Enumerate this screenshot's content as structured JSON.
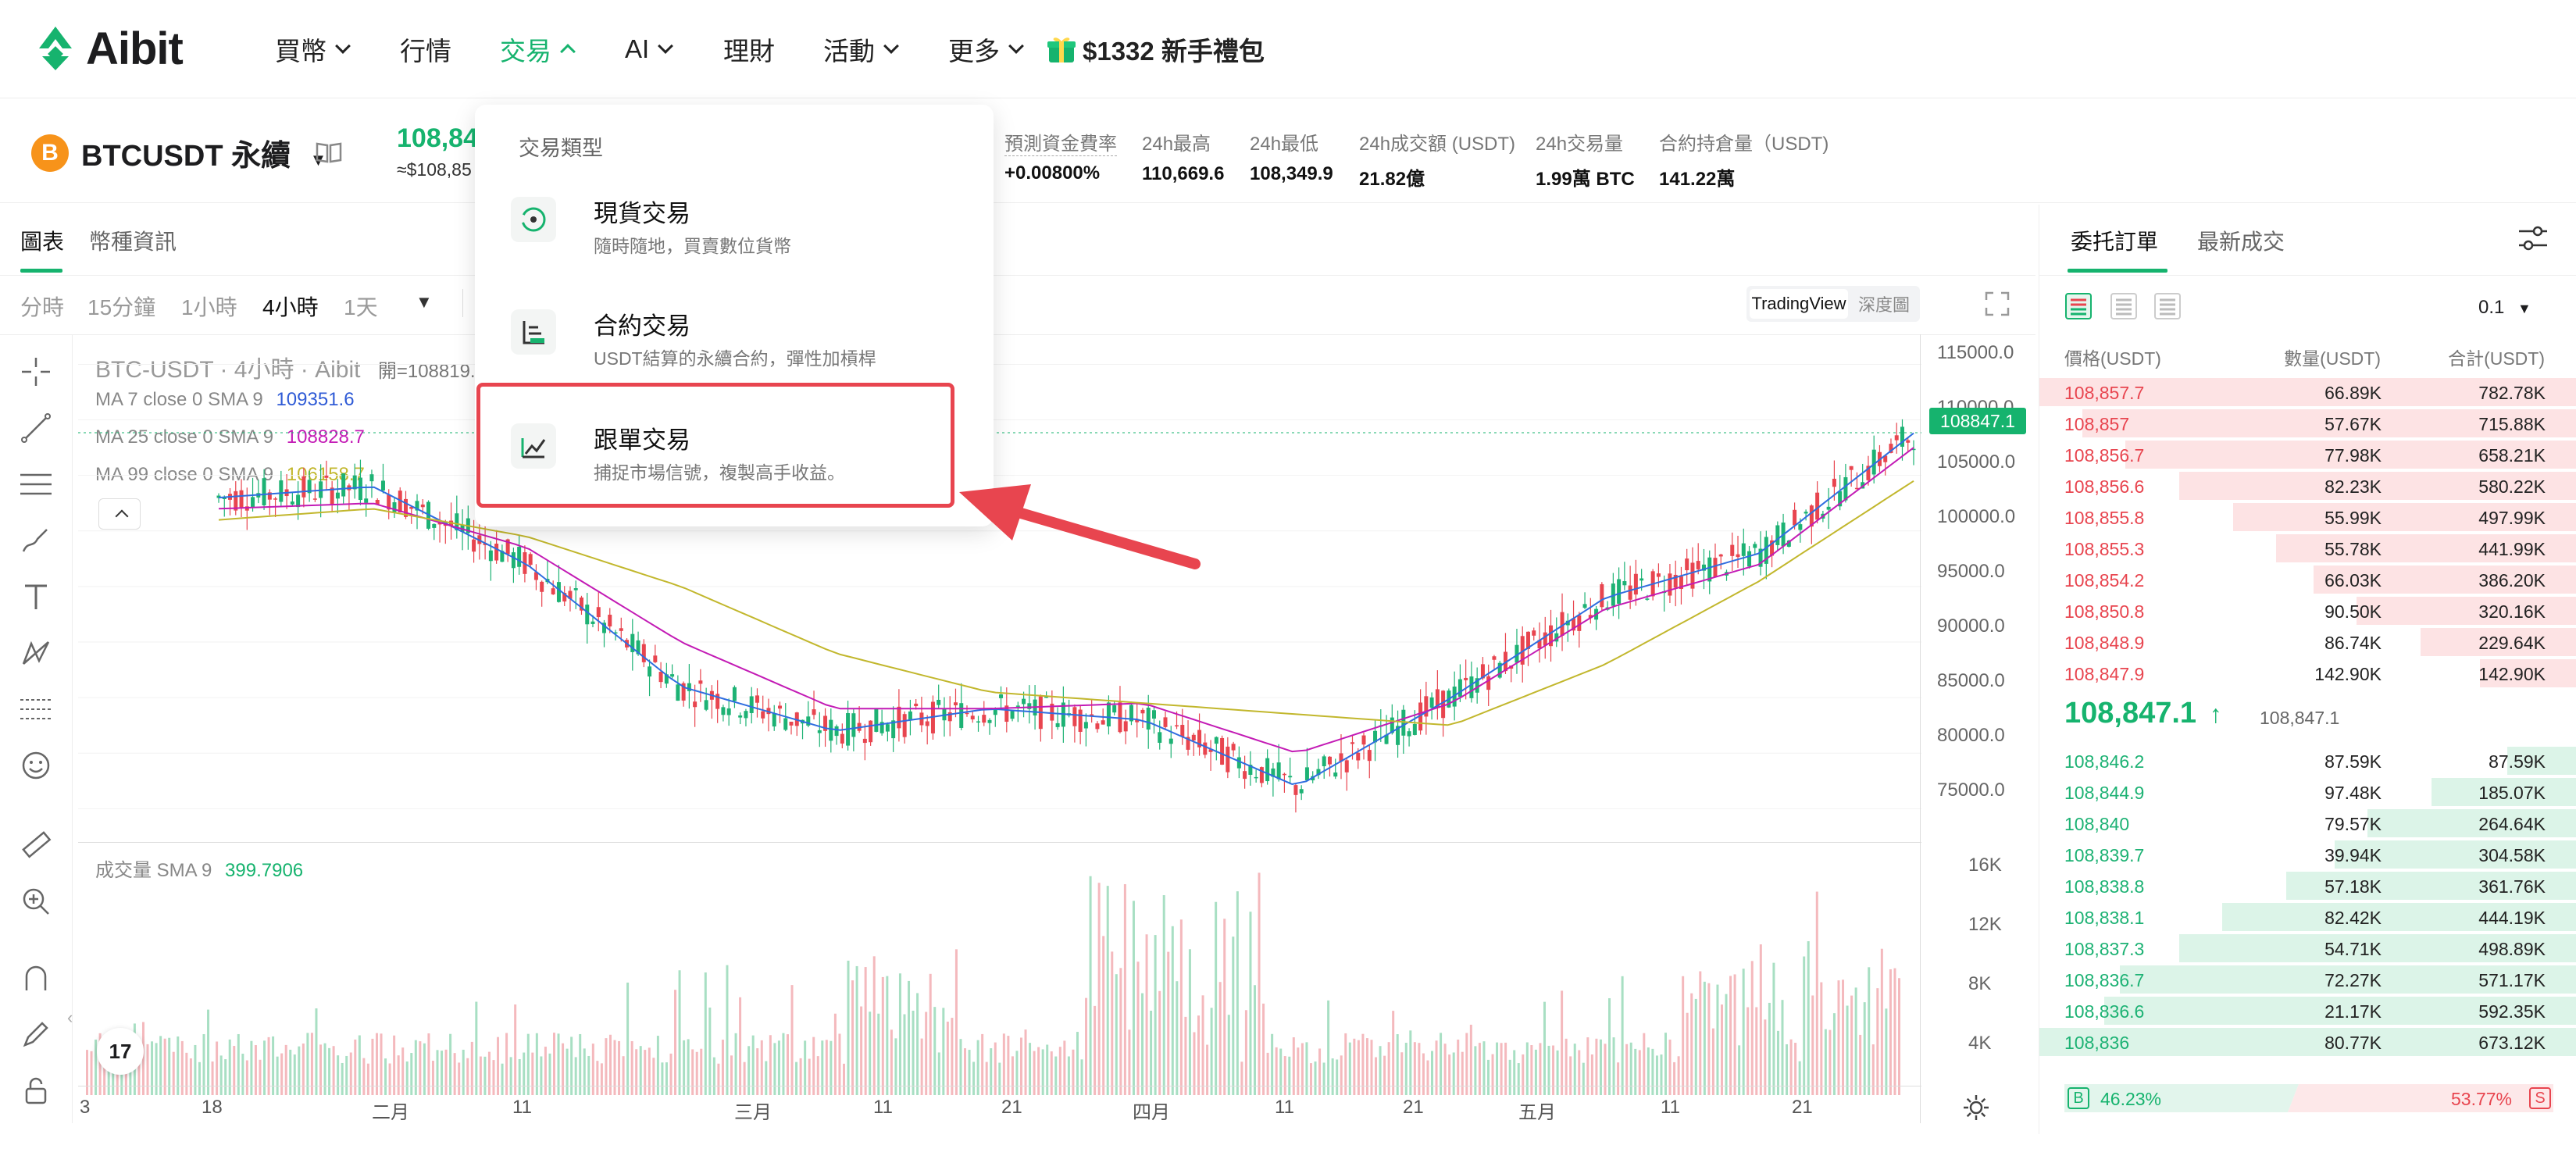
{
  "nav": {
    "logo": "Aibit",
    "items": [
      {
        "label": "買幣",
        "chevron": true
      },
      {
        "label": "行情",
        "chevron": false
      },
      {
        "label": "交易",
        "chevron": true,
        "active": true
      },
      {
        "label": "AI",
        "chevron": true
      },
      {
        "label": "理財",
        "chevron": false
      },
      {
        "label": "活動",
        "chevron": true
      },
      {
        "label": "更多",
        "chevron": true
      }
    ],
    "gift": "$1332 新手禮包"
  },
  "ticker": {
    "coin_letter": "B",
    "symbol": "BTCUSDT 永續",
    "last_price": "108,84",
    "last_price_usd": "≈$108,85",
    "stats": [
      {
        "label": "預測資金費率",
        "value": "+0.00800%"
      },
      {
        "label": "24h最高",
        "value": "110,669.6"
      },
      {
        "label": "24h最低",
        "value": "108,349.9"
      },
      {
        "label": "24h成交額 (USDT)",
        "value": "21.82億"
      },
      {
        "label": "24h交易量",
        "value": "1.99萬 BTC"
      },
      {
        "label": "合約持倉量（USDT)",
        "value": "141.22萬"
      }
    ]
  },
  "chart": {
    "tabs": [
      "圖表",
      "幣種資訊"
    ],
    "intervals": [
      "分時",
      "15分鐘",
      "1小時",
      "4小時",
      "1天"
    ],
    "active_interval": "4小時",
    "view_tradingview": "TradingView",
    "view_depth": "深度圖",
    "legend_title": "BTC-USDT · 4小時 · Aibit",
    "legend_open": "開=108819.",
    "legend_close_frag": ")",
    "ma7_label": "MA 7 close 0 SMA 9",
    "ma7_value": "109351.6",
    "ma25_label": "MA 25 close 0 SMA 9",
    "ma25_value": "108828.7",
    "ma99_label": "MA 99 close 0 SMA 9",
    "ma99_value": "106158.7",
    "volume_label": "成交量 SMA 9",
    "volume_value": "399.7906",
    "price_tag": "108847.1",
    "y_ticks": [
      "115000.0",
      "110000.0",
      "105000.0",
      "100000.0",
      "95000.0",
      "90000.0",
      "85000.0",
      "80000.0",
      "75000.0"
    ],
    "vol_ticks": [
      "16K",
      "12K",
      "8K",
      "4K"
    ],
    "x_ticks": [
      "3",
      "18",
      "二月",
      "11",
      "三月",
      "11",
      "21",
      "四月",
      "11",
      "21",
      "五月",
      "11",
      "21"
    ],
    "tv_badge": "17"
  },
  "chart_data": {
    "type": "line",
    "title": "BTC-USDT · 4小時 · Aibit",
    "x": [
      "18",
      "二月",
      "11",
      "三月",
      "11",
      "21",
      "四月",
      "11",
      "21",
      "五月",
      "11",
      "21"
    ],
    "ylim": [
      72000,
      117000
    ],
    "series": [
      {
        "name": "MA 7 close 0 SMA 9",
        "values": [
          103000,
          104000,
          97000,
          86000,
          82000,
          84000,
          83000,
          77000,
          85000,
          94000,
          98000,
          108800
        ]
      },
      {
        "name": "MA 25 close 0 SMA 9",
        "values": [
          102000,
          102500,
          98500,
          90000,
          84000,
          84000,
          84500,
          80000,
          84500,
          93000,
          97000,
          107500
        ]
      },
      {
        "name": "MA 99 close 0 SMA 9",
        "values": [
          101000,
          102000,
          99500,
          95000,
          89000,
          85500,
          84500,
          83500,
          82500,
          88000,
          95500,
          104500
        ]
      }
    ]
  },
  "dropdown": {
    "title": "交易類型",
    "items": [
      {
        "title": "現貨交易",
        "desc": "隨時隨地，買賣數位貨幣"
      },
      {
        "title": "合約交易",
        "desc": "USDT結算的永續合約，彈性加槓桿"
      },
      {
        "title": "跟單交易",
        "desc": "捕捉市場信號，複製高手收益。"
      }
    ]
  },
  "orderbook": {
    "tabs": [
      "委托訂單",
      "最新成交"
    ],
    "precision": "0.1",
    "headers": {
      "price": "價格(USDT)",
      "qty": "數量(USDT)",
      "total": "合計(USDT)"
    },
    "asks": [
      {
        "price": "108,857.7",
        "qty": "66.89K",
        "total": "782.78K",
        "depth": 1.0
      },
      {
        "price": "108,857",
        "qty": "57.67K",
        "total": "715.88K",
        "depth": 0.92
      },
      {
        "price": "108,856.7",
        "qty": "77.98K",
        "total": "658.21K",
        "depth": 0.84
      },
      {
        "price": "108,856.6",
        "qty": "82.23K",
        "total": "580.22K",
        "depth": 0.74
      },
      {
        "price": "108,855.8",
        "qty": "55.99K",
        "total": "497.99K",
        "depth": 0.64
      },
      {
        "price": "108,855.3",
        "qty": "55.78K",
        "total": "441.99K",
        "depth": 0.56
      },
      {
        "price": "108,854.2",
        "qty": "66.03K",
        "total": "386.20K",
        "depth": 0.49
      },
      {
        "price": "108,850.8",
        "qty": "90.50K",
        "total": "320.16K",
        "depth": 0.41
      },
      {
        "price": "108,848.9",
        "qty": "86.74K",
        "total": "229.64K",
        "depth": 0.29
      },
      {
        "price": "108,847.9",
        "qty": "142.90K",
        "total": "142.90K",
        "depth": 0.18
      }
    ],
    "mid_price": "108,847.1",
    "mid_ref": "108,847.1",
    "bids": [
      {
        "price": "108,846.2",
        "qty": "87.59K",
        "total": "87.59K",
        "depth": 0.13
      },
      {
        "price": "108,844.9",
        "qty": "97.48K",
        "total": "185.07K",
        "depth": 0.27
      },
      {
        "price": "108,840",
        "qty": "79.57K",
        "total": "264.64K",
        "depth": 0.39
      },
      {
        "price": "108,839.7",
        "qty": "39.94K",
        "total": "304.58K",
        "depth": 0.45
      },
      {
        "price": "108,838.8",
        "qty": "57.18K",
        "total": "361.76K",
        "depth": 0.54
      },
      {
        "price": "108,838.1",
        "qty": "82.42K",
        "total": "444.19K",
        "depth": 0.66
      },
      {
        "price": "108,837.3",
        "qty": "54.71K",
        "total": "498.89K",
        "depth": 0.74
      },
      {
        "price": "108,836.7",
        "qty": "72.27K",
        "total": "571.17K",
        "depth": 0.85
      },
      {
        "price": "108,836.6",
        "qty": "21.17K",
        "total": "592.35K",
        "depth": 0.88
      },
      {
        "price": "108,836",
        "qty": "80.77K",
        "total": "673.12K",
        "depth": 1.0
      }
    ],
    "buy_pct": "46.23%",
    "sell_pct": "53.77%",
    "buy_letter": "B",
    "sell_letter": "S"
  },
  "colors": {
    "accent": "#16b36e",
    "ask": "#e8454f",
    "bid": "#1db274",
    "highlight": "#e8454f"
  }
}
